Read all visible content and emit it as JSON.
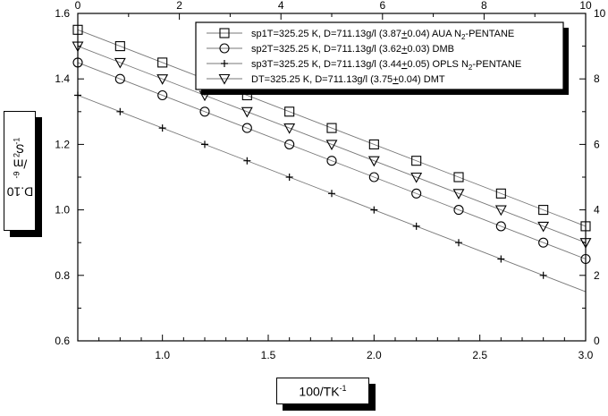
{
  "chart_data": {
    "type": "scatter",
    "xlabel_main": "100/TK",
    "xlabel_sup": "-1",
    "ylabel_main": "D.10",
    "ylabel_sup1": "-9",
    "ylabel_mid": "/m",
    "ylabel_sup2": "2",
    "ylabel_end": "S",
    "ylabel_sup3": "-1",
    "xlim": [
      0.6,
      3.0
    ],
    "ylim": [
      0.6,
      1.6
    ],
    "x_ticks": [
      "1.0",
      "1.5",
      "2.0",
      "2.5",
      "3.0"
    ],
    "y_ticks": [
      "0.6",
      "0.8",
      "1.0",
      "1.2",
      "1.4",
      "1.6"
    ],
    "top_axis": {
      "range": [
        0,
        10
      ],
      "ticks": [
        "0",
        "2",
        "4",
        "6",
        "8",
        "10"
      ]
    },
    "right_axis": {
      "range": [
        0,
        10
      ],
      "ticks": [
        "0",
        "2",
        "4",
        "6",
        "8",
        "10"
      ]
    },
    "legend_position": "top-right",
    "series": [
      {
        "marker": "square",
        "legend_parts": [
          "sp1T=325.25 K, D=711.13g/l (3.87",
          "+",
          "0.04) AUA  N",
          "2",
          "-PENTANE"
        ],
        "x": [
          0.6,
          0.8,
          1.0,
          1.2,
          1.4,
          1.6,
          1.8,
          2.0,
          2.2,
          2.4,
          2.6,
          2.8,
          3.0
        ],
        "y": [
          1.55,
          1.5,
          1.45,
          1.4,
          1.35,
          1.3,
          1.25,
          1.2,
          1.15,
          1.1,
          1.05,
          1.0,
          0.95
        ],
        "fit": [
          1.55,
          0.95
        ]
      },
      {
        "marker": "circle",
        "legend_parts": [
          "sp2T=325.25 K, D=711.13g/l (3.62",
          "+",
          "0.03) DMB",
          "",
          ""
        ],
        "x": [
          0.6,
          0.8,
          1.0,
          1.2,
          1.4,
          1.6,
          1.8,
          2.0,
          2.2,
          2.4,
          2.6,
          2.8,
          3.0
        ],
        "y": [
          1.45,
          1.4,
          1.35,
          1.3,
          1.25,
          1.2,
          1.15,
          1.1,
          1.05,
          1.0,
          0.95,
          0.9,
          0.85
        ],
        "fit": [
          1.45,
          0.85
        ]
      },
      {
        "marker": "plus",
        "legend_parts": [
          "sp3T=325.25 K, D=711.13g/l (3.44",
          "+",
          "0.05) OPLS N",
          "2",
          "-PENTANE"
        ],
        "x": [
          0.6,
          0.8,
          1.0,
          1.2,
          1.4,
          1.6,
          1.8,
          2.0,
          2.2,
          2.4,
          2.6,
          2.8
        ],
        "y": [
          1.35,
          1.3,
          1.25,
          1.2,
          1.15,
          1.1,
          1.05,
          1.0,
          0.95,
          0.9,
          0.85,
          0.8
        ],
        "fit": [
          1.35,
          0.75
        ]
      },
      {
        "marker": "triangle",
        "legend_parts": [
          "DT=325.25 K, D=711.13g/l (3.75",
          "+",
          "0.04) DMT",
          "",
          ""
        ],
        "x": [
          0.6,
          0.8,
          1.0,
          1.2,
          1.4,
          1.6,
          1.8,
          2.0,
          2.2,
          2.4,
          2.6,
          2.8,
          3.0
        ],
        "y": [
          1.5,
          1.45,
          1.4,
          1.35,
          1.3,
          1.25,
          1.2,
          1.15,
          1.1,
          1.05,
          1.0,
          0.95,
          0.9
        ],
        "fit": [
          1.5,
          0.9
        ]
      }
    ]
  }
}
